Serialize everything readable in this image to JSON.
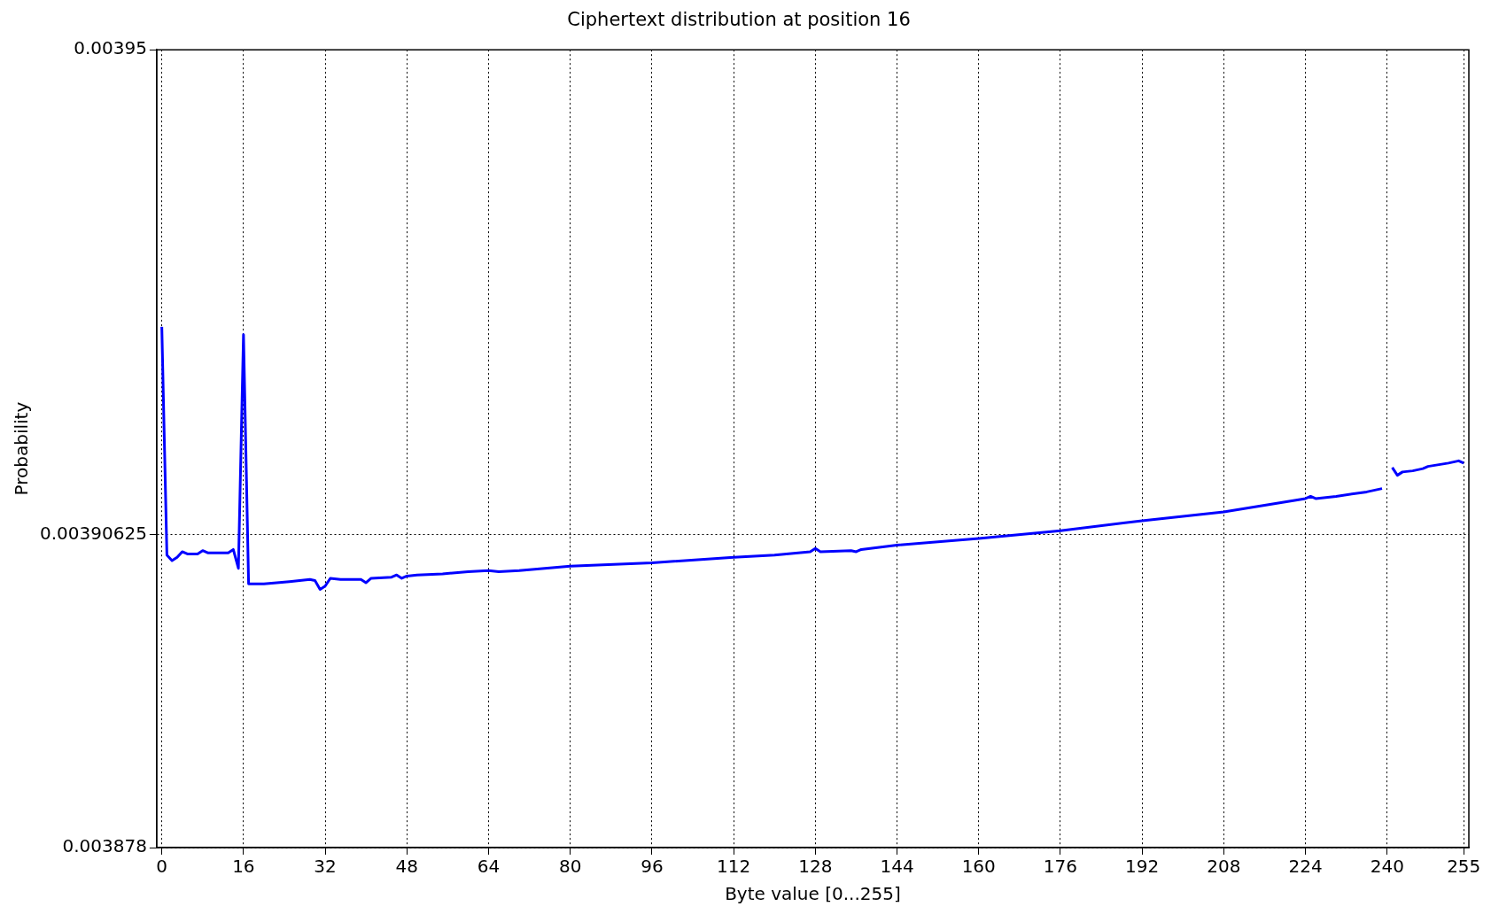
{
  "chart_data": {
    "type": "line",
    "title": "Ciphertext distribution at position 16",
    "xlabel": "Byte value [0...255]",
    "ylabel": "Probability",
    "x": [
      0,
      1,
      2,
      3,
      4,
      5,
      7,
      8,
      9,
      13,
      14,
      15,
      16,
      17,
      20,
      25,
      29,
      30,
      31,
      32,
      33,
      35,
      39,
      40,
      41,
      45,
      46,
      47,
      48,
      50,
      55,
      60,
      64,
      66,
      70,
      80,
      96,
      112,
      120,
      127,
      128,
      129,
      135,
      136,
      137,
      144,
      160,
      176,
      192,
      208,
      224,
      225,
      226,
      230,
      236,
      238,
      239,
      240,
      241,
      242,
      243,
      245,
      247,
      248,
      252,
      254,
      255
    ],
    "series": [
      {
        "color": "#0000ff",
        "values": [
          0.003925,
          0.0039044,
          0.0039039,
          0.0039042,
          0.0039047,
          0.0039045,
          0.0039045,
          0.0039048,
          0.0039046,
          0.0039046,
          0.0039049,
          0.0039032,
          0.0039243,
          0.0039018,
          0.0039018,
          0.003902,
          0.0039022,
          0.0039021,
          0.0039013,
          0.0039016,
          0.0039023,
          0.0039022,
          0.0039022,
          0.0039019,
          0.0039023,
          0.0039024,
          0.0039026,
          0.0039023,
          0.0039025,
          0.0039026,
          0.0039027,
          0.0039029,
          0.003903,
          0.0039029,
          0.003903,
          0.0039034,
          0.0039037,
          0.0039042,
          0.0039044,
          0.0039047,
          0.003905,
          0.0039047,
          0.0039048,
          0.0039047,
          0.0039049,
          0.0039053,
          0.0039059,
          0.0039066,
          0.0039075,
          0.0039083,
          0.0039095,
          0.0039097,
          0.0039095,
          0.0039097,
          0.0039101,
          0.0039103,
          0.0039104,
          null,
          0.0039123,
          0.0039116,
          0.0039119,
          0.003912,
          0.0039122,
          0.0039124,
          0.0039127,
          0.0039129,
          0.0039127
        ]
      }
    ],
    "xlim": [
      -1,
      256
    ],
    "xticks": [
      0,
      16,
      32,
      48,
      64,
      80,
      96,
      112,
      128,
      144,
      160,
      176,
      192,
      208,
      224,
      240,
      255
    ],
    "ylim": [
      0.003878,
      0.00395
    ],
    "yticks": [
      0.003878,
      0.00390625,
      0.00395
    ],
    "grid": true,
    "legend": false,
    "marker": "none",
    "line_style": "solid"
  }
}
